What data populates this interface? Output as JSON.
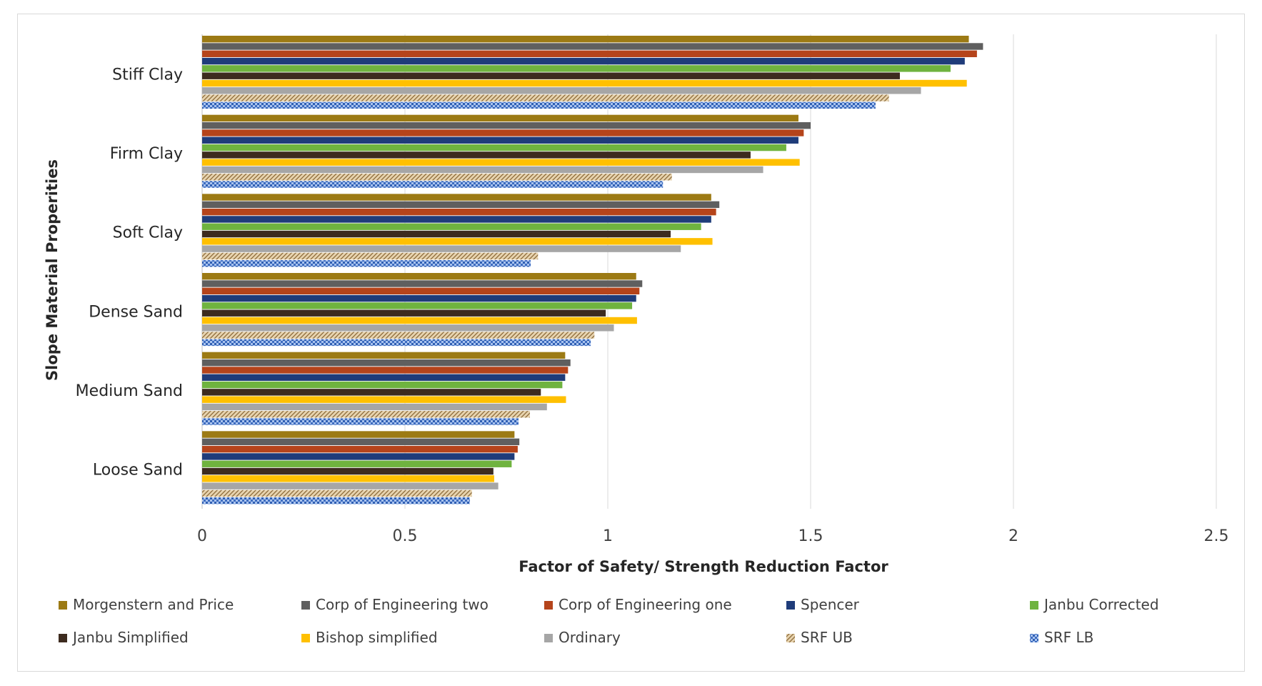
{
  "chart_data": {
    "type": "bar",
    "orientation": "horizontal",
    "title": "",
    "xlabel": "Factor of Safety/ Strength Reduction Factor",
    "ylabel": "Slope Material Properities",
    "xlim": [
      0,
      2.5
    ],
    "xticks": [
      0,
      0.5,
      1,
      1.5,
      2,
      2.5
    ],
    "xtick_labels": [
      "0",
      "0.5",
      "1",
      "1.5",
      "2",
      "2.5"
    ],
    "grid": "vertical",
    "legend_position": "bottom",
    "categories": [
      "Stiff Clay",
      "Firm Clay",
      "Soft Clay",
      "Dense Sand",
      "Medium Sand",
      "Loose Sand"
    ],
    "series": [
      {
        "name": "Morgenstern and Price",
        "color": "#9C7A14",
        "pattern": "solid",
        "values": [
          1.89,
          1.47,
          1.255,
          1.07,
          0.895,
          0.77
        ]
      },
      {
        "name": "Corp of Engineering two",
        "color": "#5F5F5F",
        "pattern": "solid",
        "values": [
          1.925,
          1.5,
          1.275,
          1.085,
          0.908,
          0.782
        ]
      },
      {
        "name": "Corp of Engineering one",
        "color": "#B5441B",
        "pattern": "solid",
        "values": [
          1.91,
          1.483,
          1.267,
          1.078,
          0.902,
          0.778
        ]
      },
      {
        "name": "Spencer",
        "color": "#1F3C7A",
        "pattern": "solid",
        "values": [
          1.88,
          1.47,
          1.255,
          1.07,
          0.895,
          0.77
        ]
      },
      {
        "name": "Janbu Corrected",
        "color": "#6FB33F",
        "pattern": "solid",
        "values": [
          1.845,
          1.44,
          1.23,
          1.06,
          0.888,
          0.763
        ]
      },
      {
        "name": "Janbu Simplified",
        "color": "#3D2B1F",
        "pattern": "solid",
        "values": [
          1.72,
          1.352,
          1.155,
          0.995,
          0.835,
          0.718
        ]
      },
      {
        "name": "Bishop simplified",
        "color": "#FFC000",
        "pattern": "solid",
        "values": [
          1.885,
          1.473,
          1.258,
          1.072,
          0.897,
          0.72
        ]
      },
      {
        "name": "Ordinary",
        "color": "#A6A6A6",
        "pattern": "solid",
        "values": [
          1.772,
          1.383,
          1.18,
          1.015,
          0.85,
          0.73
        ]
      },
      {
        "name": "SRF UB",
        "color": "#C8AD7F",
        "pattern": "hatch",
        "values": [
          1.693,
          1.158,
          0.828,
          0.967,
          0.808,
          0.665
        ]
      },
      {
        "name": "SRF LB",
        "color": "#4F7FD0",
        "pattern": "dots",
        "values": [
          1.66,
          1.136,
          0.81,
          0.958,
          0.78,
          0.66
        ]
      }
    ]
  }
}
